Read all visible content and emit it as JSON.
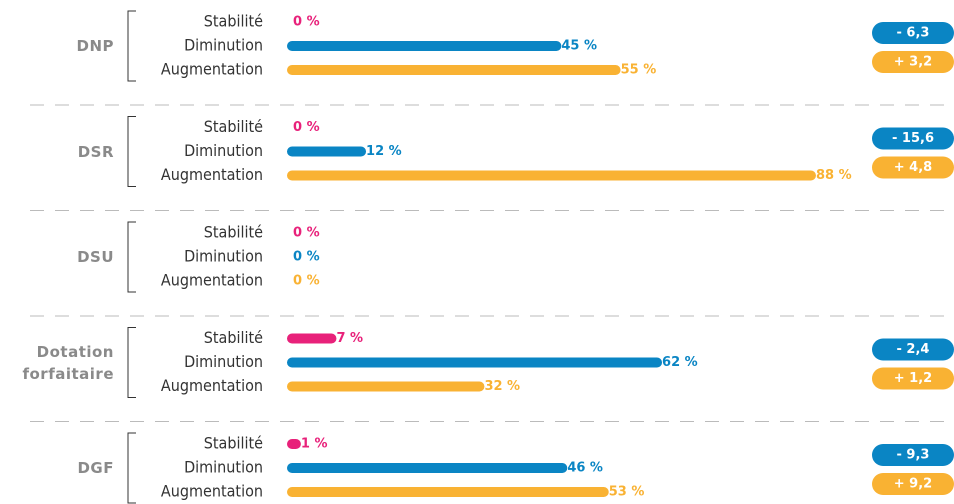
{
  "chart_data": {
    "type": "bar",
    "orientation": "horizontal",
    "categories": [
      "DNP",
      "DSR",
      "DSU",
      "Dotation forfaitaire",
      "DGF"
    ],
    "series": [
      {
        "name": "Stabilité",
        "color": "#e8217a",
        "values": [
          0,
          0,
          0,
          7,
          1
        ],
        "value_labels": [
          "0 %",
          "0 %",
          "0 %",
          "7 %",
          "1 %"
        ]
      },
      {
        "name": "Diminution",
        "color": "#0a85c4",
        "values": [
          45,
          12,
          0,
          62,
          46
        ],
        "value_labels": [
          "45 %",
          "12 %",
          "0 %",
          "62 %",
          "46 %"
        ]
      },
      {
        "name": "Augmentation",
        "color": "#f9b233",
        "values": [
          55,
          88,
          0,
          32,
          53
        ],
        "value_labels": [
          "55 %",
          "88 %",
          "0 %",
          "32 %",
          "53 %"
        ]
      }
    ],
    "badges": [
      {
        "color": "#0a85c4",
        "values": [
          -6.3,
          -15.6,
          null,
          -2.4,
          -9.3
        ],
        "value_labels": [
          "- 6,3",
          "- 15,6",
          null,
          "- 2,4",
          "- 9,3"
        ]
      },
      {
        "color": "#f9b233",
        "values": [
          3.2,
          4.8,
          null,
          1.2,
          9.2
        ],
        "value_labels": [
          "+ 3,2",
          "+ 4,8",
          null,
          "+ 1,2",
          "+ 9,2"
        ]
      }
    ],
    "xlim": [
      0,
      100
    ]
  }
}
